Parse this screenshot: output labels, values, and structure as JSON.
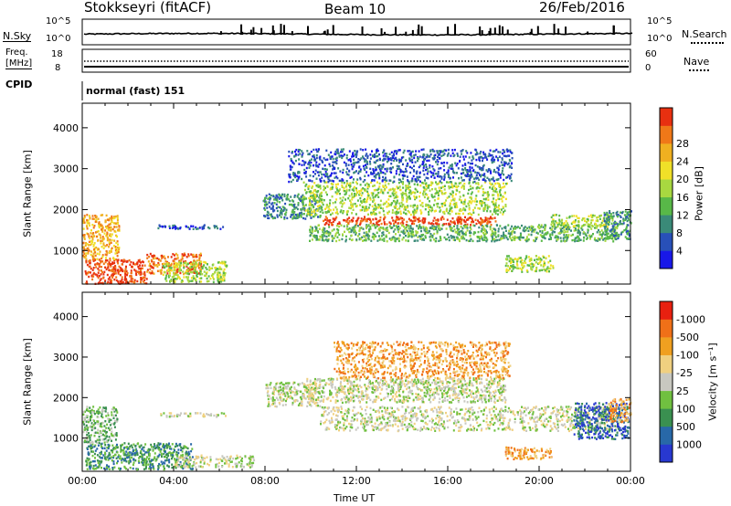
{
  "header": {
    "title": "Stokkseyri (fitACF)",
    "beam": "Beam 10",
    "date": "26/Feb/2016"
  },
  "top_panels": {
    "nsky_label": "N.Sky",
    "nsky_ticks": [
      "10^5",
      "10^0"
    ],
    "nsearch_label": "N.Search",
    "freq_label_1": "Freq.",
    "freq_label_2": "[MHz]",
    "freq_ticks": [
      "18",
      "8"
    ],
    "nave_label": "Nave",
    "nave_ticks": [
      "60",
      "0"
    ],
    "cpid_label": "CPID",
    "cpid_value": "normal (fast) 151"
  },
  "chart_data": [
    {
      "type": "heatmap",
      "name": "Power",
      "ylabel": "Slant Range [km]",
      "yticks": [
        1000,
        2000,
        3000,
        4000
      ],
      "ylim": [
        180,
        4600
      ],
      "colorbar_label": "Power [dB]",
      "colorbar_ticks": [
        "4",
        "8",
        "12",
        "16",
        "20",
        "24",
        "28"
      ],
      "colors": [
        "#1818e8",
        "#2850b8",
        "#3a8a78",
        "#58b848",
        "#a8d840",
        "#f0e028",
        "#f0b020",
        "#f07818",
        "#e83010"
      ],
      "regions": [
        {
          "t0": 0.1,
          "t1": 2.8,
          "r0": 200,
          "r1": 800,
          "level": 8
        },
        {
          "t0": 0.0,
          "t1": 1.6,
          "r0": 800,
          "r1": 1900,
          "level": 6
        },
        {
          "t0": 2.8,
          "t1": 5.2,
          "r0": 450,
          "r1": 950,
          "level": 7
        },
        {
          "t0": 3.5,
          "t1": 6.3,
          "r0": 250,
          "r1": 750,
          "level": 4
        },
        {
          "t0": 3.2,
          "t1": 6.3,
          "r0": 1550,
          "r1": 1650,
          "level": 1
        },
        {
          "t0": 7.9,
          "t1": 10.4,
          "r0": 1800,
          "r1": 2400,
          "level": 2
        },
        {
          "t0": 9.6,
          "t1": 18.6,
          "r0": 1900,
          "r1": 2700,
          "level": 4
        },
        {
          "t0": 10.5,
          "t1": 18.1,
          "r0": 1650,
          "r1": 1850,
          "level": 8
        },
        {
          "t0": 9.9,
          "t1": 23.5,
          "r0": 1250,
          "r1": 1650,
          "level": 3
        },
        {
          "t0": 9.0,
          "t1": 18.8,
          "r0": 2700,
          "r1": 3500,
          "level": 1
        },
        {
          "t0": 20.5,
          "t1": 23.2,
          "r0": 1600,
          "r1": 1900,
          "level": 4
        },
        {
          "t0": 18.5,
          "t1": 20.6,
          "r0": 500,
          "r1": 900,
          "level": 4
        },
        {
          "t0": 22.8,
          "t1": 24.0,
          "r0": 1300,
          "r1": 2000,
          "level": 2
        }
      ]
    },
    {
      "type": "heatmap",
      "name": "Velocity",
      "ylabel": "Slant Range [km]",
      "yticks": [
        1000,
        2000,
        3000,
        4000
      ],
      "ylim": [
        180,
        4600
      ],
      "xticks": [
        "00:00",
        "04:00",
        "08:00",
        "12:00",
        "16:00",
        "20:00",
        "00:00"
      ],
      "xlabel": "Time UT",
      "colorbar_label": "Velocity [m s⁻¹]",
      "colorbar_ticks": [
        "1000",
        "500",
        "100",
        "25",
        "-25",
        "-100",
        "-500",
        "-1000"
      ],
      "colors": [
        "#2838d0",
        "#2868a8",
        "#3a9050",
        "#70c040",
        "#c8c8c0",
        "#f0d080",
        "#f0a020",
        "#f07018",
        "#e82010"
      ],
      "regions": [
        {
          "t0": 0.1,
          "t1": 4.8,
          "r0": 250,
          "r1": 900,
          "level": 2
        },
        {
          "t0": 0.0,
          "t1": 1.5,
          "r0": 900,
          "r1": 1800,
          "level": 3
        },
        {
          "t0": 3.3,
          "t1": 6.3,
          "r0": 1550,
          "r1": 1650,
          "level": 4
        },
        {
          "t0": 4.0,
          "t1": 7.5,
          "r0": 300,
          "r1": 600,
          "level": 4
        },
        {
          "t0": 8.0,
          "t1": 10.4,
          "r0": 1800,
          "r1": 2400,
          "level": 4
        },
        {
          "t0": 9.8,
          "t1": 18.5,
          "r0": 1900,
          "r1": 2500,
          "level": 4
        },
        {
          "t0": 10.4,
          "t1": 23.5,
          "r0": 1200,
          "r1": 1800,
          "level": 4
        },
        {
          "t0": 11.0,
          "t1": 18.7,
          "r0": 2500,
          "r1": 3400,
          "level": 6
        },
        {
          "t0": 18.5,
          "t1": 20.5,
          "r0": 500,
          "r1": 800,
          "level": 6
        },
        {
          "t0": 21.5,
          "t1": 23.9,
          "r0": 1000,
          "r1": 1900,
          "level": 1
        },
        {
          "t0": 23.0,
          "t1": 24.0,
          "r0": 1400,
          "r1": 2000,
          "level": 6
        }
      ]
    }
  ]
}
